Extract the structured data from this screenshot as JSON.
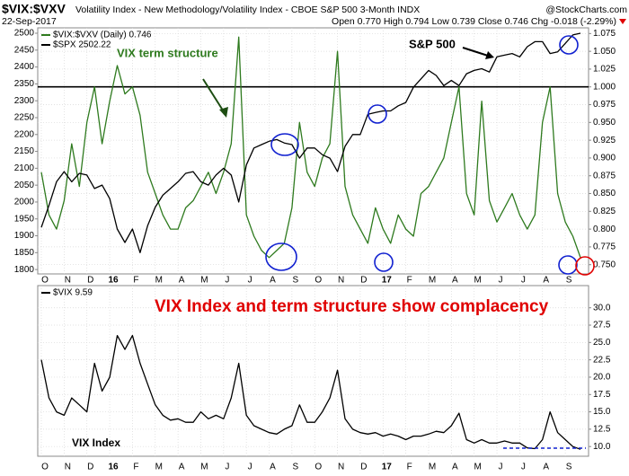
{
  "chart_data": [
    {
      "type": "line",
      "title": "$VIX:$VXV",
      "subtitle": "Volatility Index - New Methodology/Volatility Index - CBOE S&P 500 3-Month INDX",
      "date": "22-Sep-2017",
      "quote": "Open 0.770 High 0.794 Low 0.739 Close 0.746 Chg -0.018 (-2.29%)",
      "watermark": "@StockCharts.com",
      "annotations": [
        "VIX term structure",
        "S&P 500"
      ],
      "categories": [
        "O",
        null,
        null,
        "N",
        null,
        null,
        "D",
        null,
        null,
        "16",
        null,
        null,
        "F",
        null,
        null,
        "M",
        null,
        null,
        "A",
        null,
        null,
        "M",
        null,
        null,
        "J",
        null,
        null,
        "J",
        null,
        null,
        "A",
        null,
        null,
        "S",
        null,
        null,
        "O",
        null,
        null,
        "N",
        null,
        null,
        "D",
        null,
        null,
        "17",
        null,
        null,
        "F",
        null,
        null,
        "M",
        null,
        null,
        "A",
        null,
        null,
        "M",
        null,
        null,
        "J",
        null,
        null,
        "J",
        null,
        null,
        "A",
        null,
        null,
        "S",
        null,
        null
      ],
      "series": [
        {
          "name": "$VIX:$VXV (Daily) 0.746",
          "color": "#2e7a1e",
          "axis": "y2",
          "values": [
            0.88,
            0.82,
            0.8,
            0.84,
            0.92,
            0.86,
            0.95,
            1.0,
            0.92,
            0.98,
            1.03,
            0.99,
            1.0,
            0.96,
            0.88,
            0.85,
            0.82,
            0.8,
            0.8,
            0.83,
            0.84,
            0.86,
            0.88,
            0.85,
            0.88,
            0.92,
            1.07,
            0.82,
            0.79,
            0.77,
            0.76,
            0.77,
            0.78,
            0.83,
            0.95,
            0.88,
            0.86,
            0.9,
            0.92,
            1.05,
            0.86,
            0.82,
            0.8,
            0.78,
            0.83,
            0.8,
            0.78,
            0.82,
            0.8,
            0.79,
            0.85,
            0.86,
            0.88,
            0.9,
            0.95,
            1.0,
            0.85,
            0.82,
            0.98,
            0.84,
            0.81,
            0.83,
            0.85,
            0.82,
            0.8,
            0.82,
            0.95,
            1.0,
            0.85,
            0.81,
            0.79,
            0.76
          ]
        },
        {
          "name": "$SPX 2502.22",
          "color": "#000000",
          "values": [
            1925,
            1990,
            2060,
            2090,
            2060,
            2085,
            2080,
            2040,
            2050,
            2010,
            1920,
            1880,
            1920,
            1850,
            1930,
            1985,
            2020,
            2040,
            2060,
            2085,
            2090,
            2060,
            2050,
            2080,
            2100,
            2080,
            2000,
            2110,
            2160,
            2170,
            2180,
            2185,
            2175,
            2170,
            2130,
            2160,
            2160,
            2140,
            2130,
            2090,
            2165,
            2200,
            2200,
            2260,
            2265,
            2270,
            2270,
            2285,
            2295,
            2340,
            2365,
            2390,
            2375,
            2345,
            2360,
            2345,
            2380,
            2390,
            2395,
            2385,
            2430,
            2435,
            2440,
            2430,
            2460,
            2475,
            2475,
            2440,
            2445,
            2470,
            2495,
            2500
          ]
        }
      ],
      "ylim": [
        1787,
        2516
      ],
      "yticks": [
        1800,
        1850,
        1900,
        1950,
        2000,
        2050,
        2100,
        2150,
        2200,
        2250,
        2300,
        2350,
        2400,
        2450,
        2500
      ],
      "y2lim": [
        0.737,
        1.083
      ],
      "y2ticks": [
        {
          "value": 0.75,
          "label": "0.750"
        },
        {
          "value": 0.775,
          "label": "0.775"
        },
        {
          "value": 0.8,
          "label": "0.800"
        },
        {
          "value": 0.825,
          "label": "0.825"
        },
        {
          "value": 0.85,
          "label": "0.850"
        },
        {
          "value": 0.875,
          "label": "0.875"
        },
        {
          "value": 0.9,
          "label": "0.900"
        },
        {
          "value": 0.925,
          "label": "0.925"
        },
        {
          "value": 0.95,
          "label": "0.950"
        },
        {
          "value": 0.975,
          "label": "0.975"
        },
        {
          "value": 1.0,
          "label": "1.000"
        },
        {
          "value": 1.025,
          "label": "1.025"
        },
        {
          "value": 1.05,
          "label": "1.050"
        },
        {
          "value": 1.075,
          "label": "1.075"
        }
      ],
      "reference_line": {
        "value": 1.0,
        "axis": "y2"
      },
      "grid": true
    },
    {
      "type": "line",
      "annotations": [
        "VIX Index and term structure show complacency",
        "VIX Index"
      ],
      "categories": [
        "O",
        null,
        null,
        "N",
        null,
        null,
        "D",
        null,
        null,
        "16",
        null,
        null,
        "F",
        null,
        null,
        "M",
        null,
        null,
        "A",
        null,
        null,
        "M",
        null,
        null,
        "J",
        null,
        null,
        "J",
        null,
        null,
        "A",
        null,
        null,
        "S",
        null,
        null,
        "O",
        null,
        null,
        "N",
        null,
        null,
        "D",
        null,
        null,
        "17",
        null,
        null,
        "F",
        null,
        null,
        "M",
        null,
        null,
        "A",
        null,
        null,
        "M",
        null,
        null,
        "J",
        null,
        null,
        "J",
        null,
        null,
        "A",
        null,
        null,
        "S",
        null,
        null
      ],
      "series": [
        {
          "name": "$VIX 9.59",
          "color": "#000000",
          "values": [
            22.5,
            17,
            15,
            14.5,
            17,
            16,
            15,
            22,
            18,
            20,
            26,
            24,
            26,
            22,
            19,
            16,
            14.5,
            13.8,
            14,
            13.5,
            13.5,
            15,
            14,
            14.5,
            14,
            17,
            22,
            14.5,
            13,
            12.5,
            12,
            11.8,
            12.5,
            13,
            16,
            13.5,
            13.5,
            15,
            17,
            21,
            14,
            12.5,
            12,
            11.8,
            12,
            11.5,
            11.8,
            11.5,
            11,
            11.5,
            11.5,
            11.8,
            12.2,
            12,
            13,
            14.8,
            11,
            10.5,
            11,
            10.5,
            10.5,
            10.8,
            10.5,
            10.5,
            9.8,
            9.7,
            11,
            15,
            12,
            11,
            10,
            9.6
          ]
        }
      ],
      "ylim": [
        8.6,
        33.2
      ],
      "yticks": [
        {
          "value": 10,
          "label": "10.0"
        },
        12.5,
        {
          "value": 15,
          "label": "15.0"
        },
        17.5,
        {
          "value": 20,
          "label": "20.0"
        },
        22.5,
        {
          "value": 25,
          "label": "25.0"
        },
        27.5,
        {
          "value": 30,
          "label": "30.0"
        }
      ],
      "y_axis_side": "right",
      "grid": true
    }
  ]
}
